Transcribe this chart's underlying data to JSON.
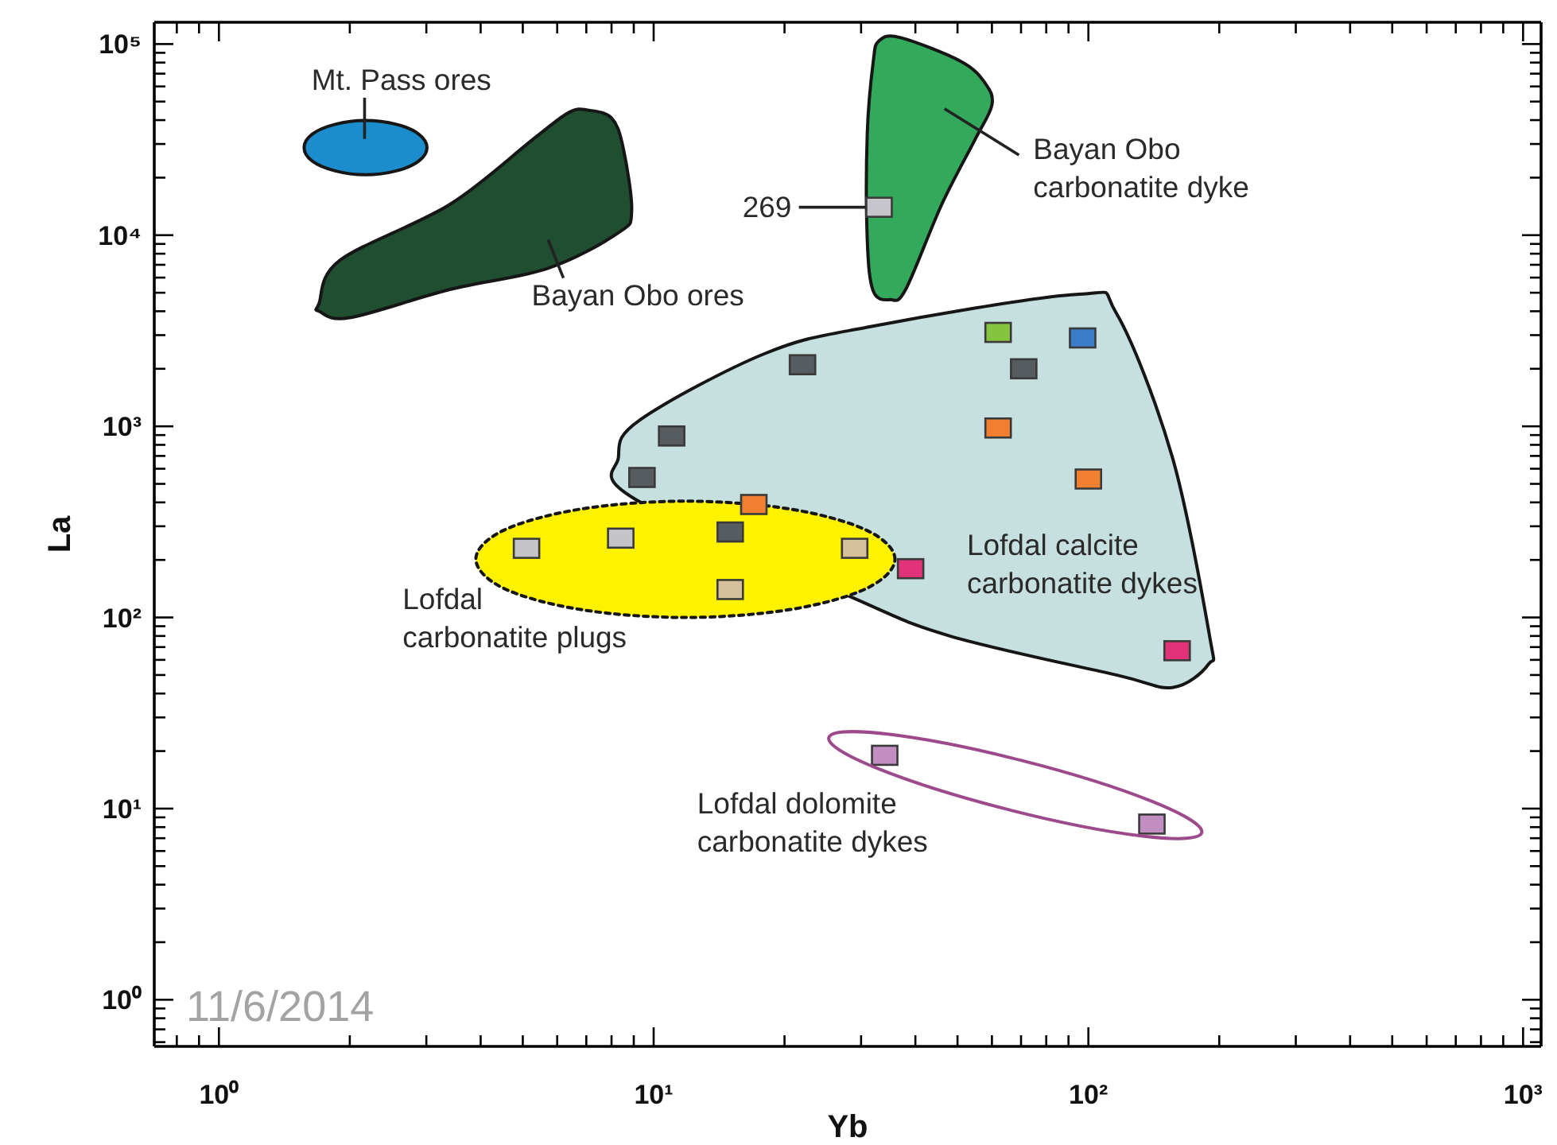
{
  "chart_data": {
    "type": "scatter",
    "xlabel": "Yb",
    "ylabel": "La",
    "log": "xy",
    "marker": "square",
    "xlim": [
      0.71,
      1100
    ],
    "ylim": [
      0.57,
      130000
    ],
    "xticks": [
      {
        "value": 0.8,
        "label": null
      },
      {
        "value": 0.9,
        "label": null
      },
      {
        "value": 1,
        "label": "10⁰"
      },
      {
        "value": 2,
        "label": null
      },
      {
        "value": 3,
        "label": null
      },
      {
        "value": 4,
        "label": null
      },
      {
        "value": 5,
        "label": null
      },
      {
        "value": 6,
        "label": null
      },
      {
        "value": 7,
        "label": null
      },
      {
        "value": 8,
        "label": null
      },
      {
        "value": 9,
        "label": null
      },
      {
        "value": 10,
        "label": "10¹"
      },
      {
        "value": 20,
        "label": null
      },
      {
        "value": 30,
        "label": null
      },
      {
        "value": 40,
        "label": null
      },
      {
        "value": 50,
        "label": null
      },
      {
        "value": 60,
        "label": null
      },
      {
        "value": 70,
        "label": null
      },
      {
        "value": 80,
        "label": null
      },
      {
        "value": 90,
        "label": null
      },
      {
        "value": 100,
        "label": "10²"
      },
      {
        "value": 200,
        "label": null
      },
      {
        "value": 300,
        "label": null
      },
      {
        "value": 400,
        "label": null
      },
      {
        "value": 500,
        "label": null
      },
      {
        "value": 600,
        "label": null
      },
      {
        "value": 700,
        "label": null
      },
      {
        "value": 800,
        "label": null
      },
      {
        "value": 900,
        "label": null
      },
      {
        "value": 1000,
        "label": "10³"
      }
    ],
    "yticks": [
      {
        "value": 0.6,
        "label": null
      },
      {
        "value": 0.7,
        "label": null
      },
      {
        "value": 0.8,
        "label": null
      },
      {
        "value": 0.9,
        "label": null
      },
      {
        "value": 1,
        "label": "10⁰"
      },
      {
        "value": 2,
        "label": null
      },
      {
        "value": 3,
        "label": null
      },
      {
        "value": 4,
        "label": null
      },
      {
        "value": 5,
        "label": null
      },
      {
        "value": 6,
        "label": null
      },
      {
        "value": 7,
        "label": null
      },
      {
        "value": 8,
        "label": null
      },
      {
        "value": 9,
        "label": null
      },
      {
        "value": 10,
        "label": "10¹"
      },
      {
        "value": 20,
        "label": null
      },
      {
        "value": 30,
        "label": null
      },
      {
        "value": 40,
        "label": null
      },
      {
        "value": 50,
        "label": null
      },
      {
        "value": 60,
        "label": null
      },
      {
        "value": 70,
        "label": null
      },
      {
        "value": 80,
        "label": null
      },
      {
        "value": 90,
        "label": null
      },
      {
        "value": 100,
        "label": "10²"
      },
      {
        "value": 200,
        "label": null
      },
      {
        "value": 300,
        "label": null
      },
      {
        "value": 400,
        "label": null
      },
      {
        "value": 500,
        "label": null
      },
      {
        "value": 600,
        "label": null
      },
      {
        "value": 700,
        "label": null
      },
      {
        "value": 800,
        "label": null
      },
      {
        "value": 900,
        "label": null
      },
      {
        "value": 1000,
        "label": "10³"
      },
      {
        "value": 2000,
        "label": null
      },
      {
        "value": 3000,
        "label": null
      },
      {
        "value": 4000,
        "label": null
      },
      {
        "value": 5000,
        "label": null
      },
      {
        "value": 6000,
        "label": null
      },
      {
        "value": 7000,
        "label": null
      },
      {
        "value": 8000,
        "label": null
      },
      {
        "value": 9000,
        "label": null
      },
      {
        "value": 10000,
        "label": "10⁴"
      },
      {
        "value": 20000,
        "label": null
      },
      {
        "value": 30000,
        "label": null
      },
      {
        "value": 40000,
        "label": null
      },
      {
        "value": 50000,
        "label": null
      },
      {
        "value": 60000,
        "label": null
      },
      {
        "value": 70000,
        "label": null
      },
      {
        "value": 80000,
        "label": null
      },
      {
        "value": 90000,
        "label": null
      },
      {
        "value": 100000,
        "label": "10⁵"
      }
    ],
    "annotations": [
      "11/6/2014",
      "Lofdal dolomite\ncarbonatite dykes"
    ],
    "series": [
      {
        "type": "area",
        "name": "Mt. Pass ores",
        "color": "#1b8dcc",
        "marker": "none",
        "x": [
          3.01,
          2.88,
          2.56,
          2.17,
          1.85,
          1.64,
          1.57,
          1.64,
          1.85,
          2.17,
          2.56,
          2.88
        ],
        "values": [
          28700,
          33800,
          38000,
          39800,
          38000,
          33800,
          28700,
          24400,
          21700,
          20700,
          21700,
          24400
        ]
      },
      {
        "type": "area",
        "name": "Bayan Obo ores",
        "color": "#1f4e30",
        "marker": "none",
        "x": [
          1.7,
          1.9,
          3.4,
          5.3,
          6.4,
          7.1,
          8.0,
          8.5,
          8.9,
          8.3,
          5.7,
          3.4,
          2.0,
          1.7
        ],
        "values": [
          4400,
          7400,
          14500,
          32000,
          44000,
          45000,
          41000,
          29000,
          13400,
          10300,
          6700,
          5200,
          3700,
          4000
        ]
      },
      {
        "type": "area",
        "name": "Bayan Obo\ncarbonatite dyke",
        "color": "#33a95b",
        "marker": "none",
        "x": [
          33,
          37,
          51,
          58,
          60,
          55,
          46,
          38,
          35,
          32,
          31,
          31,
          32
        ],
        "values": [
          104000,
          108000,
          81000,
          62000,
          48000,
          32000,
          14500,
          5200,
          4600,
          5100,
          9500,
          34000,
          81000
        ]
      },
      {
        "type": "area",
        "name": "Lofdal calcite\ncarbonatite dykes",
        "color": "#c6dfdf",
        "marker": "none",
        "x": [
          8.3,
          9.3,
          18,
          31,
          94,
          116,
          156,
          190,
          189,
          156,
          116,
          48,
          28,
          9.0
        ],
        "values": [
          690,
          1080,
          2400,
          3300,
          4900,
          3900,
          690,
          80,
          57,
          43,
          50,
          80,
          130,
          420
        ]
      },
      {
        "type": "area",
        "name": "Lofdal\ncarbonatite plugs",
        "color": "#fff200",
        "marker": "none",
        "line_style": "dotted",
        "x": [
          35.9,
          30.9,
          20.6,
          11.8,
          6.79,
          4.52,
          3.9,
          4.52,
          6.79,
          11.8,
          20.6,
          30.9
        ],
        "values": [
          202,
          286,
          369,
          406,
          369,
          286,
          202,
          142,
          110,
          100,
          110,
          142
        ]
      },
      {
        "name": "269",
        "color": "#c5c5cb",
        "x": [
          33
        ],
        "values": [
          14000
        ]
      },
      {
        "colors": [
          "#86c440",
          "#3b7dc8",
          "#575c61",
          "#575c61",
          "#f07f32",
          "#575c61",
          "#575c61",
          "#f07f32",
          "#f07f32",
          "#c5c5c9",
          "#c5c5c9",
          "#575c61",
          "#d6c09a",
          "#d6c09a",
          "#e23278",
          "#e23278",
          "#c28ec2",
          "#c28ec2"
        ],
        "x": [
          62,
          97,
          71,
          22,
          62,
          11,
          9.4,
          100,
          17,
          5.1,
          8.4,
          15,
          29,
          15,
          39,
          160,
          34,
          140
        ],
        "values": [
          3100,
          2900,
          2000,
          2100,
          980,
          890,
          540,
          530,
          390,
          230,
          260,
          280,
          230,
          140,
          180,
          67,
          19,
          8.3
        ]
      }
    ]
  }
}
